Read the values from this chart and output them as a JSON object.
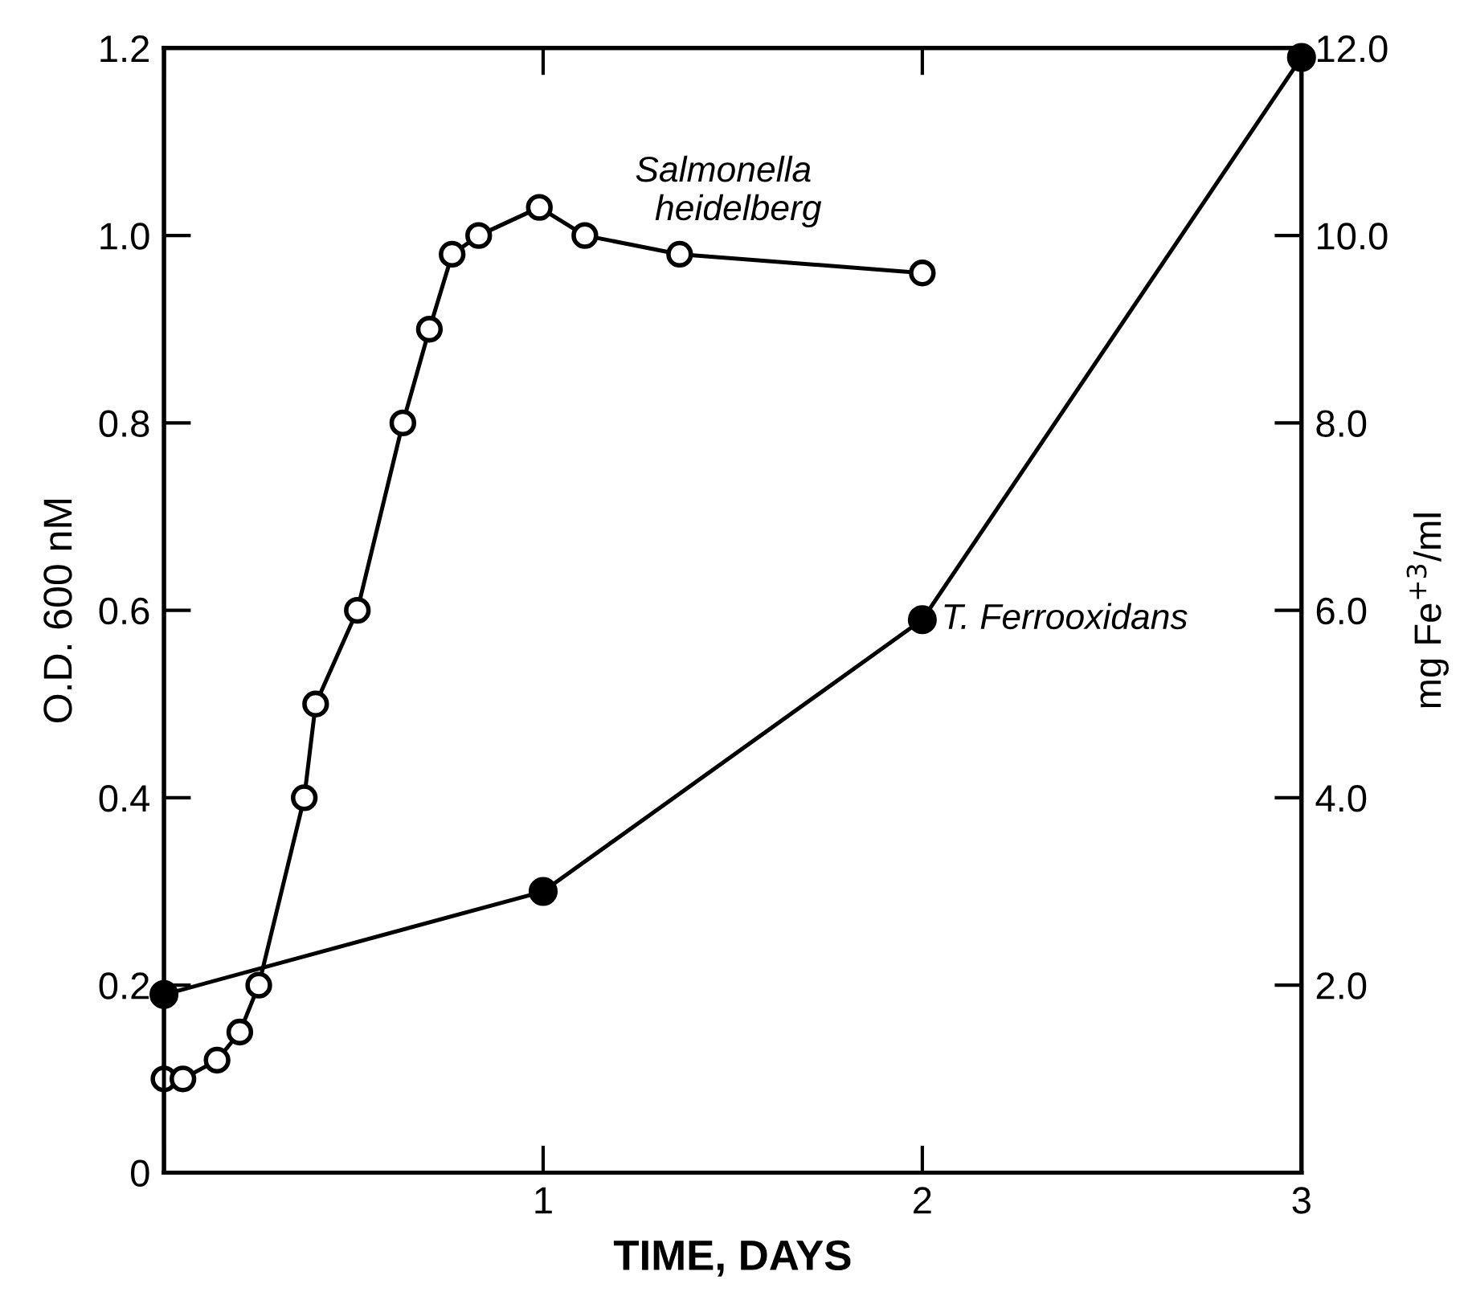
{
  "chart_data": {
    "type": "line",
    "xlabel": "TIME, DAYS",
    "ylabel": "O.D. 600 nM",
    "y2label": "mg Fe$^{+3}$/ml",
    "xlim": [
      0,
      3
    ],
    "xticks": [
      {
        "value": 0,
        "label": null
      },
      1,
      2,
      3
    ],
    "ylim": [
      0,
      1.2
    ],
    "yticks": [
      0,
      0.2,
      0.4,
      0.6,
      0.8,
      {
        "value": 1,
        "label": "1.0"
      },
      1.2
    ],
    "y2lim": [
      0,
      12
    ],
    "y2ticks": [
      {
        "value": 2,
        "label": "2.0"
      },
      {
        "value": 4,
        "label": "4.0"
      },
      {
        "value": 6,
        "label": "6.0"
      },
      {
        "value": 8,
        "label": "8.0"
      },
      {
        "value": 10,
        "label": "10.0"
      },
      {
        "value": 12,
        "label": "12.0"
      }
    ],
    "marker": "circle",
    "line_style": "solid",
    "grid": false,
    "legend": false,
    "series": [
      {
        "color": "#000000",
        "x": [
          0,
          0.05,
          0.14,
          0.2,
          0.25,
          0.37,
          0.4,
          0.51,
          0.63,
          0.7,
          0.76,
          0.83,
          0.99,
          1.11,
          1.36,
          2.0
        ],
        "values": [
          0.1,
          0.1,
          0.12,
          0.15,
          0.2,
          0.4,
          0.5,
          0.6,
          0.8,
          0.9,
          0.98,
          1.0,
          1.03,
          1.0,
          0.98,
          0.96
        ]
      },
      {
        "color": "#000000",
        "axis": "y2",
        "x": [
          0,
          1,
          2,
          3
        ],
        "values": [
          1.9,
          3.0,
          5.9,
          11.9
        ]
      }
    ],
    "annotations": [
      "Salmonella\n  heidelberg",
      {
        "text": "T. Ferrooxidans",
        "x": 2.05,
        "y": 0.59
      }
    ]
  }
}
